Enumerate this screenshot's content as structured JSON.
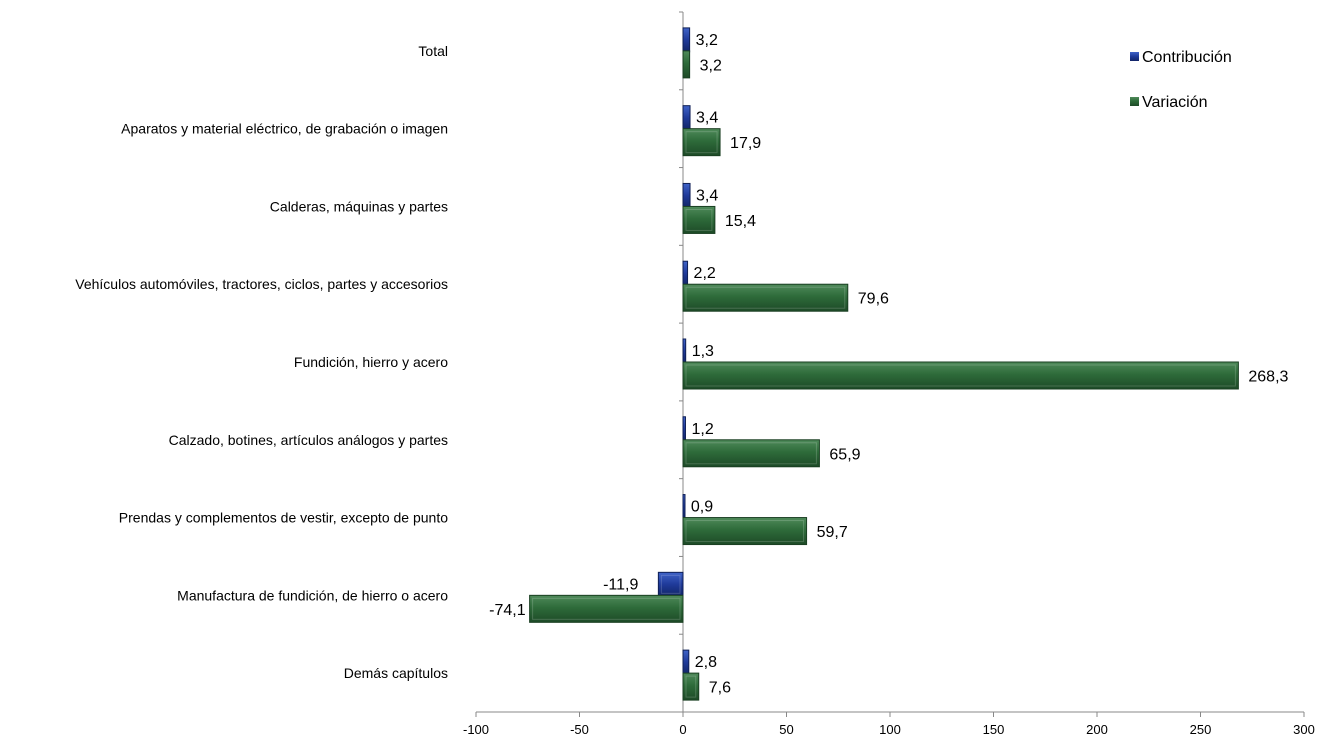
{
  "chart_data": {
    "type": "bar",
    "orientation": "horizontal",
    "categories": [
      "Total",
      "Aparatos y material eléctrico, de grabación o imagen",
      "Calderas, máquinas y partes",
      "Vehículos automóviles, tractores, ciclos, partes y accesorios",
      "Fundición, hierro y acero",
      "Calzado, botines, artículos análogos y partes",
      "Prendas y complementos de vestir, excepto de punto",
      "Manufactura de fundición, de hierro o acero",
      "Demás capítulos"
    ],
    "series": [
      {
        "name": "Contribución",
        "color": "#1f3a7a",
        "values": [
          3.2,
          3.4,
          3.4,
          2.2,
          1.3,
          1.2,
          0.9,
          -11.9,
          2.8
        ],
        "labels": [
          "3,2",
          "3,4",
          "3,4",
          "2,2",
          "1,3",
          "1,2",
          "0,9",
          "-11,9",
          "2,8"
        ]
      },
      {
        "name": "Variación",
        "color": "#2e6b3a",
        "values": [
          3.2,
          17.9,
          15.4,
          79.6,
          268.3,
          65.9,
          59.7,
          -74.1,
          7.6
        ],
        "labels": [
          "3,2",
          "17,9",
          "15,4",
          "79,6",
          "268,3",
          "65,9",
          "59,7",
          "-74,1",
          "7,6"
        ]
      }
    ],
    "xlim": [
      -100,
      300
    ],
    "xticks": [
      "-100",
      "-50",
      "0",
      "50",
      "100",
      "150",
      "200",
      "250",
      "300"
    ],
    "xtick_values": [
      -100,
      -50,
      0,
      50,
      100,
      150,
      200,
      250,
      300
    ],
    "grid": false,
    "legend_position": "top-right"
  }
}
